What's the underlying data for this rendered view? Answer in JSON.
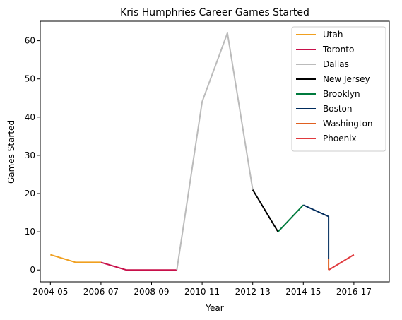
{
  "chart_data": {
    "type": "line",
    "title": "Kris Humphries Career Games Started",
    "xlabel": "Year",
    "ylabel": "Games Started",
    "x_ticks": [
      "2004-05",
      "2006-07",
      "2008-09",
      "2010-11",
      "2012-13",
      "2014-15",
      "2016-17"
    ],
    "y_ticks": [
      0,
      10,
      20,
      30,
      40,
      50,
      60
    ],
    "xlim": [
      2003.6,
      2017.4
    ],
    "ylim": [
      -3.1,
      65.1
    ],
    "grid": false,
    "legend_position": "top-right",
    "series": [
      {
        "name": "Utah",
        "color": "#f0a020",
        "points": [
          [
            2004,
            4
          ],
          [
            2005,
            2
          ],
          [
            2006,
            2
          ]
        ]
      },
      {
        "name": "Toronto",
        "color": "#c8104a",
        "points": [
          [
            2006,
            2
          ],
          [
            2007,
            0
          ],
          [
            2008,
            0
          ],
          [
            2009,
            0
          ]
        ]
      },
      {
        "name": "Dallas",
        "color": "#bbbbbb",
        "points": [
          [
            2009,
            0
          ],
          [
            2010,
            44
          ],
          [
            2011,
            62
          ],
          [
            2012,
            21
          ]
        ]
      },
      {
        "name": "New Jersey",
        "color": "#000000",
        "points": [
          [
            2012,
            21
          ],
          [
            2013,
            10
          ]
        ]
      },
      {
        "name": "Brooklyn",
        "color": "#007a3d",
        "points": [
          [
            2013,
            10
          ],
          [
            2014,
            17
          ]
        ]
      },
      {
        "name": "Boston",
        "color": "#002b5c",
        "points": [
          [
            2014,
            17
          ],
          [
            2015,
            14
          ],
          [
            2015,
            3
          ]
        ]
      },
      {
        "name": "Washington",
        "color": "#e06020",
        "points": [
          [
            2015,
            3
          ],
          [
            2015,
            0
          ]
        ]
      },
      {
        "name": "Phoenix",
        "color": "#e03a3e",
        "points": [
          [
            2015,
            0
          ],
          [
            2016,
            4
          ]
        ]
      }
    ]
  }
}
